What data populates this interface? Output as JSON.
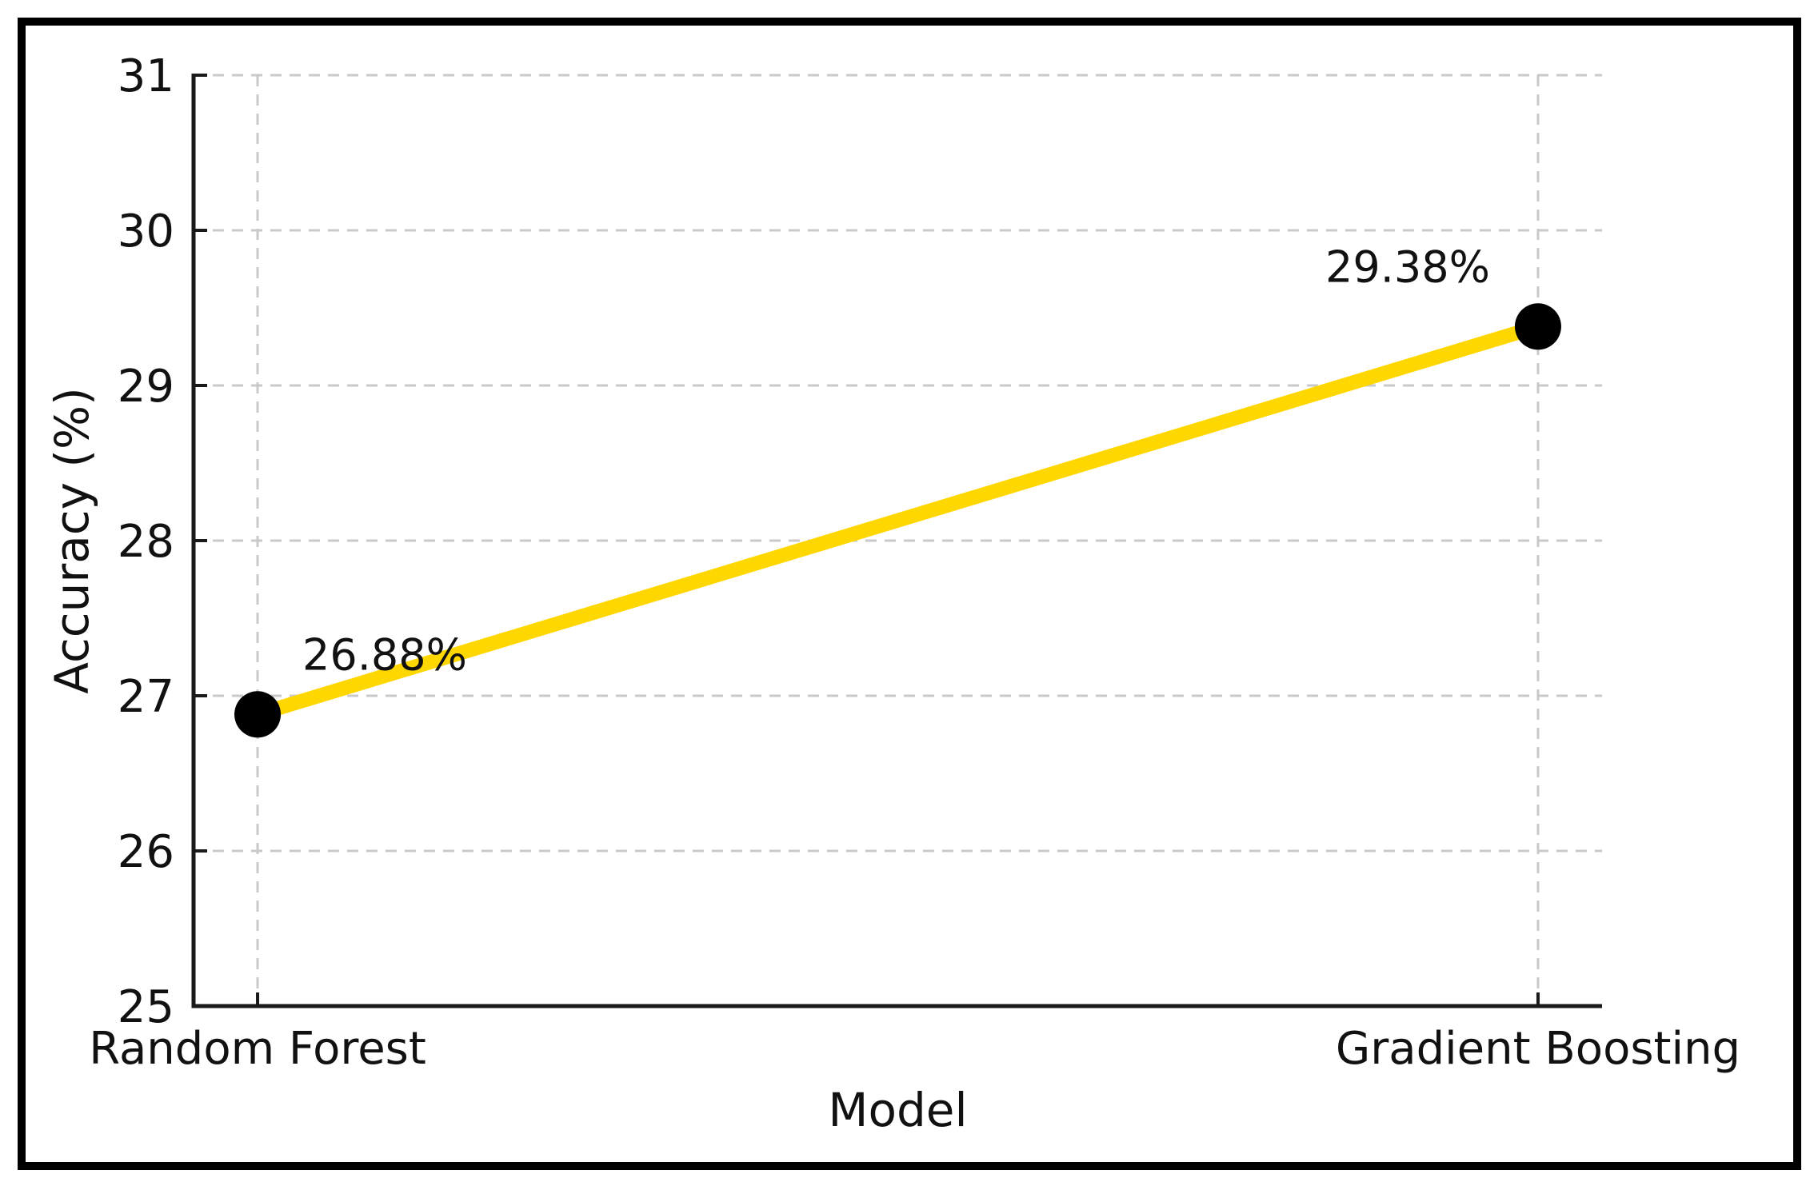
{
  "chart_data": {
    "type": "line",
    "title": "",
    "xlabel": "Model",
    "ylabel": "Accuracy (%)",
    "categories": [
      "Random Forest",
      "Gradient Boosting"
    ],
    "values": [
      26.88,
      29.38
    ],
    "point_labels": [
      "26.88%",
      "29.38%"
    ],
    "yticks": [
      25,
      26,
      27,
      28,
      29,
      30,
      31
    ],
    "ylim": [
      25,
      31
    ],
    "grid": "dashed",
    "legend": "none",
    "colors": {
      "line": "#FFD700",
      "marker": "#000000",
      "grid": "#c9c9c9",
      "spine": "#1a1a1a",
      "text": "#111111",
      "frame": "#000000",
      "background": "#ffffff"
    }
  }
}
